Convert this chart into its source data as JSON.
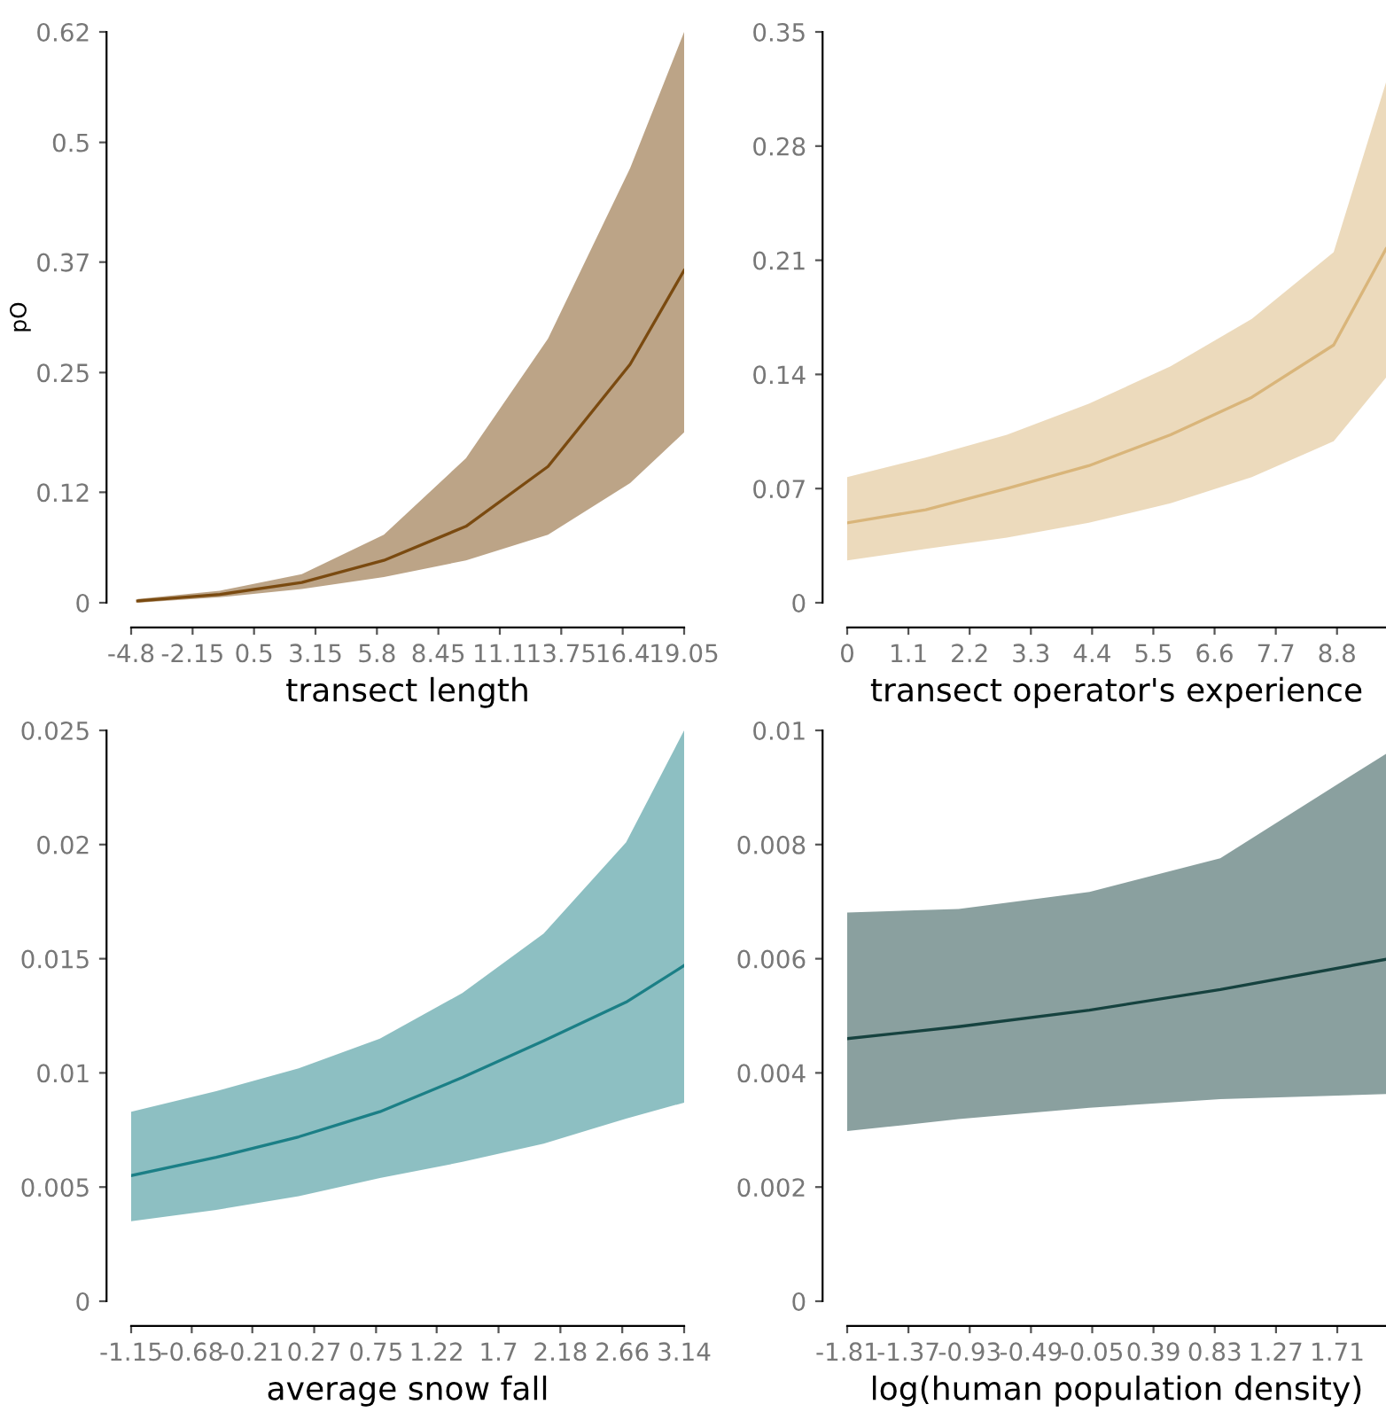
{
  "chart_data": [
    {
      "type": "line",
      "xlabel": "transect length",
      "ylabel": "pO",
      "xlim": [
        -4.8,
        19.05
      ],
      "ylim": [
        0,
        0.62
      ],
      "xticks": [
        -4.8,
        -2.15,
        0.5,
        3.15,
        5.8,
        8.45,
        11.1,
        13.75,
        16.4,
        19.05
      ],
      "yticks": [
        0,
        0.12,
        0.25,
        0.37,
        0.5,
        0.62
      ],
      "grid": false,
      "legend": false,
      "series": [
        {
          "color": "#7a4a10",
          "x": [
            -4.52,
            -0.98,
            2.56,
            6.1,
            9.64,
            13.18,
            16.72,
            19.05
          ],
          "values": [
            0.002,
            0.009,
            0.022,
            0.046,
            0.083,
            0.148,
            0.259,
            0.361
          ],
          "lower": [
            0.0,
            0.006,
            0.015,
            0.028,
            0.046,
            0.074,
            0.13,
            0.185
          ],
          "upper": [
            0.004,
            0.013,
            0.031,
            0.074,
            0.157,
            0.287,
            0.472,
            0.62
          ]
        }
      ]
    },
    {
      "type": "line",
      "xlabel": "transect operator's experience",
      "xlim": [
        0,
        9.68
      ],
      "ylim": [
        0,
        0.35
      ],
      "xticks": [
        0,
        1.1,
        2.2,
        3.3,
        4.4,
        5.5,
        6.6,
        7.7,
        8.8
      ],
      "yticks": [
        0,
        0.07,
        0.14,
        0.21,
        0.28,
        0.35
      ],
      "grid": false,
      "legend": false,
      "series": [
        {
          "color": "#d9b57a",
          "x": [
            0,
            1.41,
            2.87,
            4.34,
            5.81,
            7.27,
            8.74,
            9.68
          ],
          "values": [
            0.049,
            0.057,
            0.07,
            0.084,
            0.103,
            0.126,
            0.158,
            0.217
          ],
          "lower": [
            0.026,
            0.033,
            0.04,
            0.049,
            0.061,
            0.077,
            0.099,
            0.138
          ],
          "upper": [
            0.077,
            0.089,
            0.103,
            0.122,
            0.145,
            0.174,
            0.215,
            0.319
          ]
        }
      ]
    },
    {
      "type": "line",
      "xlabel": "average snow fall",
      "xlim": [
        -1.15,
        3.14
      ],
      "ylim": [
        0,
        0.025
      ],
      "xticks": [
        -1.15,
        -0.68,
        -0.21,
        0.27,
        0.75,
        1.22,
        1.7,
        2.18,
        2.66,
        3.14
      ],
      "yticks": [
        0,
        0.005,
        0.01,
        0.015,
        0.02,
        0.025
      ],
      "grid": false,
      "legend": false,
      "series": [
        {
          "color": "#1b7f86",
          "x": [
            -1.15,
            -0.49,
            0.15,
            0.78,
            1.42,
            2.05,
            2.69,
            3.14
          ],
          "values": [
            0.0055,
            0.0063,
            0.0072,
            0.0083,
            0.0098,
            0.0114,
            0.0131,
            0.0147
          ],
          "lower": [
            0.0035,
            0.004,
            0.0046,
            0.0054,
            0.0061,
            0.0069,
            0.008,
            0.0087
          ],
          "upper": [
            0.0083,
            0.0092,
            0.0102,
            0.0115,
            0.0135,
            0.0161,
            0.0201,
            0.025
          ]
        }
      ]
    },
    {
      "type": "line",
      "xlabel": "log(human population density)",
      "xlim": [
        -1.81,
        2.06
      ],
      "ylim": [
        0,
        0.01
      ],
      "xticks": [
        -1.81,
        -1.37,
        -0.93,
        -0.49,
        -0.05,
        0.39,
        0.83,
        1.27,
        1.71
      ],
      "yticks": [
        0,
        0.002,
        0.004,
        0.006,
        0.008,
        0.01
      ],
      "grid": false,
      "legend": false,
      "series": [
        {
          "color": "#16423f",
          "x": [
            -1.81,
            -1.01,
            -0.07,
            0.87,
            2.06
          ],
          "values": [
            0.0046,
            0.00481,
            0.0051,
            0.00546,
            0.00599
          ],
          "lower": [
            0.00298,
            0.00319,
            0.00339,
            0.00354,
            0.00363
          ],
          "upper": [
            0.00681,
            0.00687,
            0.00717,
            0.00776,
            0.00959
          ]
        }
      ]
    }
  ]
}
